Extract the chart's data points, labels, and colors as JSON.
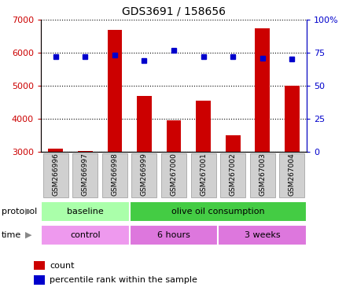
{
  "title": "GDS3691 / 158656",
  "samples": [
    "GSM266996",
    "GSM266997",
    "GSM266998",
    "GSM266999",
    "GSM267000",
    "GSM267001",
    "GSM267002",
    "GSM267003",
    "GSM267004"
  ],
  "counts": [
    3100,
    3020,
    6700,
    4700,
    3950,
    4550,
    3500,
    6750,
    5000
  ],
  "percentile_ranks": [
    72,
    72,
    73,
    69,
    77,
    72,
    72,
    71,
    70
  ],
  "bar_color": "#cc0000",
  "dot_color": "#0000cc",
  "ylim_left": [
    3000,
    7000
  ],
  "ylim_right": [
    0,
    100
  ],
  "yticks_left": [
    3000,
    4000,
    5000,
    6000,
    7000
  ],
  "yticks_right": [
    0,
    25,
    50,
    75,
    100
  ],
  "ytick_labels_left": [
    "3000",
    "4000",
    "5000",
    "6000",
    "7000"
  ],
  "ytick_labels_right": [
    "0",
    "25",
    "50",
    "75",
    "100%"
  ],
  "protocol_labels": [
    {
      "label": "baseline",
      "start": 0,
      "end": 3,
      "color": "#aaffaa"
    },
    {
      "label": "olive oil consumption",
      "start": 3,
      "end": 9,
      "color": "#44cc44"
    }
  ],
  "time_labels": [
    {
      "label": "control",
      "start": 0,
      "end": 3,
      "color": "#ee99ee"
    },
    {
      "label": "6 hours",
      "start": 3,
      "end": 6,
      "color": "#dd77dd"
    },
    {
      "label": "3 weeks",
      "start": 6,
      "end": 9,
      "color": "#dd77dd"
    }
  ],
  "legend_count_label": "count",
  "legend_pct_label": "percentile rank within the sample",
  "bar_color_red": "#cc0000",
  "dot_color_blue": "#0000cc",
  "left_tick_color": "#cc0000",
  "right_tick_color": "#0000cc"
}
